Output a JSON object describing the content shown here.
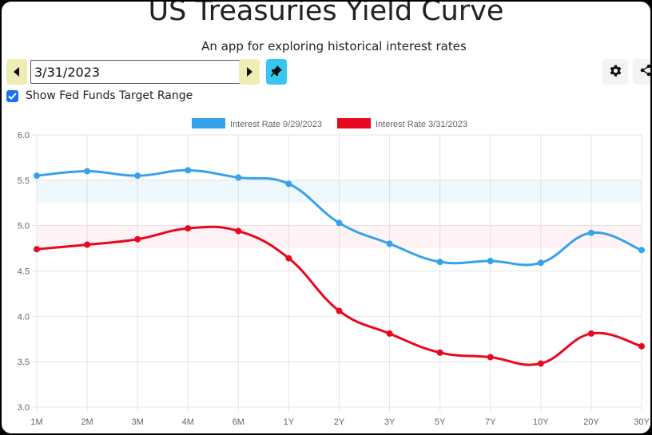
{
  "header": {
    "title": "US Treasuries Yield Curve",
    "subtitle": "An app for exploring historical interest rates"
  },
  "controls": {
    "date_value": "3/31/2023",
    "checkbox_label": "Show Fed Funds Target Range",
    "checkbox_checked": true,
    "nav_color": "#efedb6",
    "pin_color": "#35c7ef"
  },
  "chart_data": {
    "type": "line",
    "categories": [
      "1M",
      "2M",
      "3M",
      "4M",
      "6M",
      "1Y",
      "2Y",
      "3Y",
      "5Y",
      "7Y",
      "10Y",
      "20Y",
      "30Y"
    ],
    "series": [
      {
        "name": "Interest Rate 9/29/2023",
        "color": "#36a2eb",
        "values": [
          5.55,
          5.6,
          5.55,
          5.61,
          5.53,
          5.46,
          5.03,
          4.8,
          4.6,
          4.61,
          4.59,
          4.92,
          4.73
        ]
      },
      {
        "name": "Interest Rate 3/31/2023",
        "color": "#e8091e",
        "values": [
          4.74,
          4.79,
          4.85,
          4.97,
          4.94,
          4.64,
          4.06,
          3.81,
          3.6,
          3.55,
          3.48,
          3.81,
          3.67
        ]
      }
    ],
    "bands": [
      {
        "range": [
          5.25,
          5.5
        ],
        "color": "#36a2eb"
      },
      {
        "range": [
          4.75,
          5.0
        ],
        "color": "#ff6384"
      }
    ],
    "y_ticks": [
      "3.0",
      "3.5",
      "4.0",
      "4.5",
      "5.0",
      "5.5",
      "6.0"
    ],
    "ylim": [
      3.0,
      6.0
    ],
    "grid": true,
    "legend": "top-center"
  }
}
